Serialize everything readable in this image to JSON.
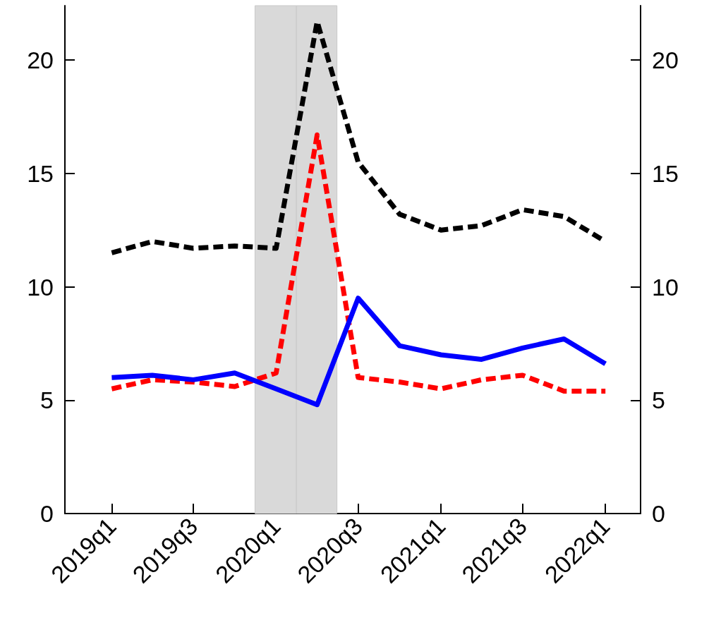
{
  "chart_data": {
    "type": "line",
    "x": [
      "2019-01",
      "2019-04",
      "2019-07",
      "2019-10",
      "2020-01",
      "2020-04",
      "2020-07",
      "2020-10",
      "2021-01",
      "2021-04",
      "2021-07",
      "2021-10",
      "2022-01"
    ],
    "xlim": [
      "2018-09-19",
      "2022-03-20"
    ],
    "xticks": [
      {
        "value": "2019-01",
        "label": "2019q1"
      },
      {
        "value": "2019-07",
        "label": "2019q3"
      },
      {
        "value": "2020-01",
        "label": "2020q1"
      },
      {
        "value": "2020-07",
        "label": "2020q3"
      },
      {
        "value": "2021-01",
        "label": "2021q1"
      },
      {
        "value": "2021-07",
        "label": "2021q3"
      },
      {
        "value": "2022-01",
        "label": "2022q1"
      }
    ],
    "ylim": [
      0,
      22.4
    ],
    "yticks": [
      0,
      5,
      10,
      15,
      20
    ],
    "y2lim": [
      0,
      22.4
    ],
    "y2ticks": [
      0,
      5,
      10,
      15,
      20
    ],
    "series": [
      {
        "color": "#000000",
        "line_style": "dashed",
        "values": [
          11.5,
          12.0,
          11.7,
          11.8,
          11.7,
          21.7,
          15.5,
          13.2,
          12.5,
          12.7,
          13.4,
          13.1,
          12.0
        ]
      },
      {
        "color": "#ff0000",
        "line_style": "dashed",
        "values": [
          5.5,
          5.9,
          5.8,
          5.6,
          6.2,
          16.7,
          6.0,
          5.8,
          5.5,
          5.9,
          6.1,
          5.4,
          5.4
        ]
      },
      {
        "color": "#0000ff",
        "line_style": "solid",
        "values": [
          6.0,
          6.1,
          5.9,
          6.2,
          5.5,
          4.8,
          9.5,
          7.4,
          7.0,
          6.8,
          7.3,
          7.7,
          6.6
        ]
      }
    ],
    "bands": [
      {
        "axis": "x",
        "from": "2019-11-15",
        "to": "2020-02-15",
        "color": "#d9d9d9"
      },
      {
        "axis": "x",
        "from": "2020-02-15",
        "to": "2020-05-15",
        "color": "#d9d9d9"
      }
    ],
    "marker": "none"
  }
}
